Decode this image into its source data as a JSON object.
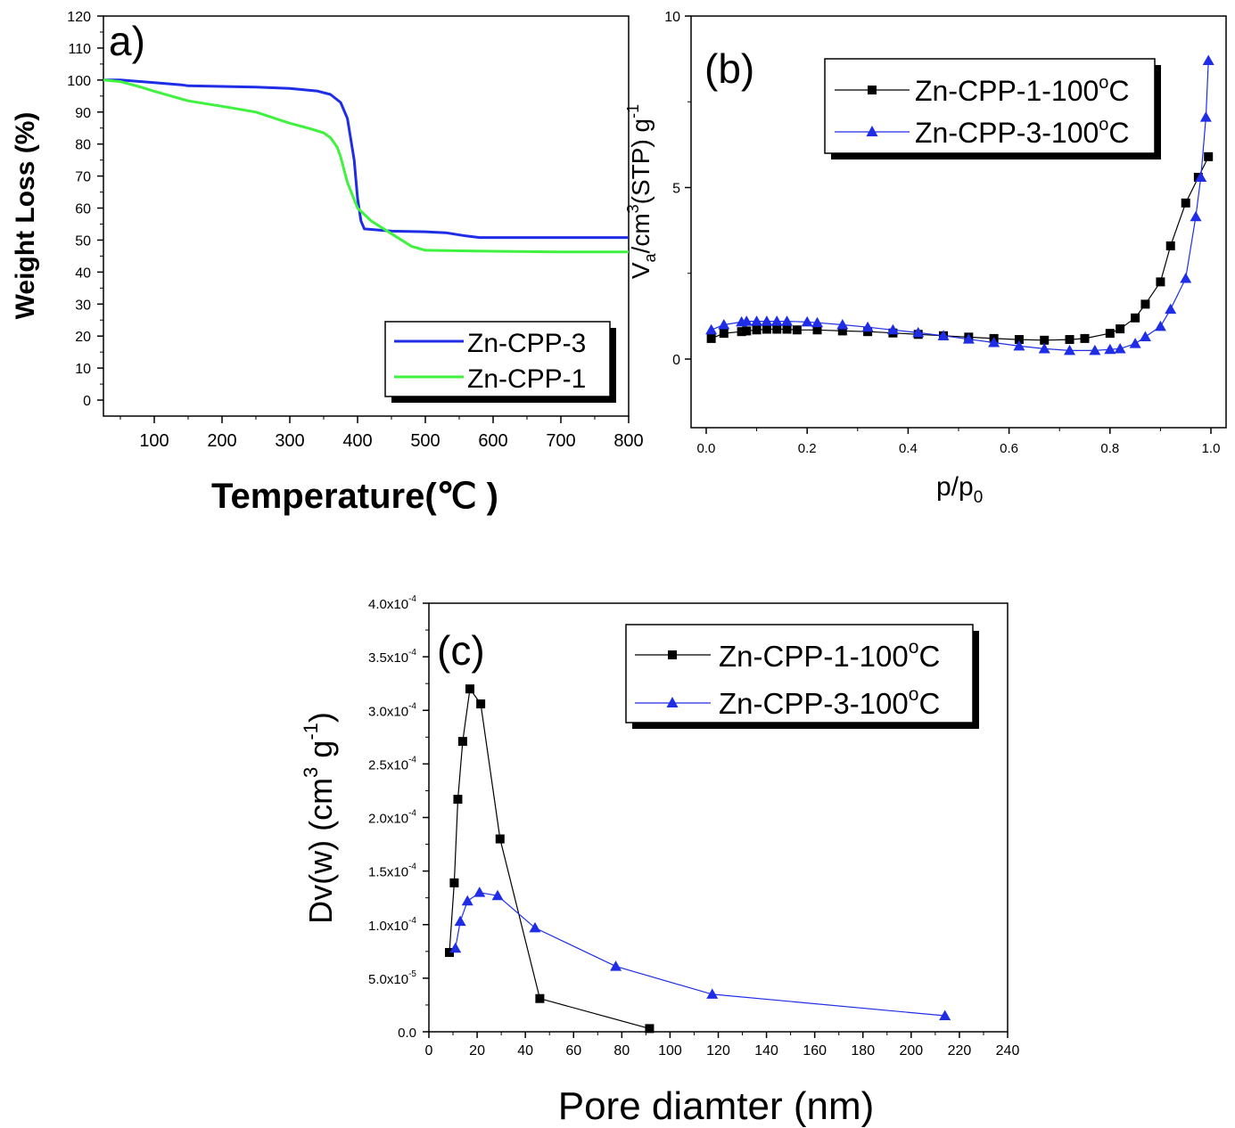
{
  "colors": {
    "blue": "#1f2ee6",
    "green": "#3ff23f",
    "black": "#000000",
    "blue_marker": "#1f2ee6"
  },
  "chart_data": [
    {
      "panel_label": "a)",
      "type": "line",
      "xlabel": "Temperature(℃ )",
      "ylabel": "Weight Loss (%)",
      "xlim": [
        25,
        800
      ],
      "ylim": [
        -5,
        120
      ],
      "xticks": [
        "100",
        "200",
        "300",
        "400",
        "500",
        "600",
        "700",
        "800"
      ],
      "yticks": [
        "0",
        "10",
        "20",
        "30",
        "40",
        "50",
        "60",
        "70",
        "80",
        "90",
        "100",
        "110",
        "120"
      ],
      "legend_position": "bottom-right",
      "series": [
        {
          "name": "Zn-CPP-3",
          "color": "blue",
          "x": [
            25,
            50,
            100,
            140,
            150,
            200,
            250,
            300,
            340,
            360,
            375,
            385,
            395,
            400,
            405,
            410,
            450,
            500,
            530,
            560,
            580,
            650,
            700,
            800
          ],
          "y": [
            100,
            100,
            99.2,
            98.5,
            98.2,
            98,
            97.8,
            97.4,
            96.6,
            95.5,
            93,
            88,
            75,
            63,
            56,
            53.5,
            52.8,
            52.6,
            52.3,
            51.3,
            50.8,
            50.8,
            50.8,
            50.8
          ]
        },
        {
          "name": "Zn-CPP-1",
          "color": "green",
          "x": [
            25,
            50,
            80,
            100,
            150,
            200,
            250,
            300,
            330,
            350,
            360,
            370,
            375,
            385,
            400,
            420,
            450,
            480,
            500,
            600,
            700,
            800
          ],
          "y": [
            100,
            99.5,
            97.8,
            96.5,
            93.5,
            91.8,
            90,
            86.5,
            84.8,
            83.5,
            82,
            79,
            76,
            68,
            60,
            56,
            52,
            48,
            46.8,
            46.5,
            46.3,
            46.3
          ]
        }
      ]
    },
    {
      "panel_label": "(b)",
      "type": "line",
      "xlabel": "p/p",
      "xlabel_sub": "0",
      "ylabel": "V",
      "ylabel_sub": "a",
      "ylabel_mid": "/cm",
      "ylabel_sup": "3",
      "ylabel_tail": "(STP) g",
      "ylabel_sup2": "-1",
      "xlim": [
        -0.03,
        1.03
      ],
      "ylim": [
        -2,
        10
      ],
      "xticks": [
        "0.0",
        "0.2",
        "0.4",
        "0.6",
        "0.8",
        "1.0"
      ],
      "yticks": [
        "0",
        "5",
        "10"
      ],
      "legend_position": "top-right",
      "series": [
        {
          "name": "Zn-CPP-1-100",
          "sup": "o",
          "suffix": "C",
          "marker": "square",
          "color": "black",
          "x": [
            0.01,
            0.035,
            0.07,
            0.08,
            0.1,
            0.12,
            0.14,
            0.16,
            0.18,
            0.22,
            0.27,
            0.32,
            0.37,
            0.42,
            0.47,
            0.52,
            0.57,
            0.62,
            0.67,
            0.72,
            0.75,
            0.8,
            0.82,
            0.85,
            0.87,
            0.9,
            0.92,
            0.95,
            0.975,
            0.995
          ],
          "y": [
            0.6,
            0.75,
            0.8,
            0.82,
            0.85,
            0.87,
            0.87,
            0.87,
            0.85,
            0.85,
            0.82,
            0.8,
            0.76,
            0.72,
            0.68,
            0.64,
            0.6,
            0.57,
            0.55,
            0.57,
            0.6,
            0.75,
            0.88,
            1.2,
            1.6,
            2.25,
            3.3,
            4.55,
            5.3,
            5.9
          ]
        },
        {
          "name": "Zn-CPP-3-100",
          "sup": "o",
          "suffix": "C",
          "marker": "triangle",
          "color": "blue",
          "x": [
            0.01,
            0.035,
            0.07,
            0.08,
            0.1,
            0.12,
            0.14,
            0.16,
            0.2,
            0.22,
            0.27,
            0.32,
            0.37,
            0.42,
            0.47,
            0.52,
            0.57,
            0.62,
            0.67,
            0.72,
            0.77,
            0.8,
            0.82,
            0.85,
            0.87,
            0.9,
            0.92,
            0.95,
            0.97,
            0.98,
            0.99,
            0.995
          ],
          "y": [
            0.85,
            1.0,
            1.08,
            1.1,
            1.1,
            1.1,
            1.1,
            1.1,
            1.08,
            1.06,
            1.0,
            0.93,
            0.85,
            0.77,
            0.68,
            0.58,
            0.48,
            0.38,
            0.3,
            0.25,
            0.25,
            0.28,
            0.3,
            0.45,
            0.65,
            0.95,
            1.45,
            2.35,
            4.15,
            5.3,
            7.05,
            8.7
          ]
        }
      ]
    },
    {
      "panel_label": "(c)",
      "type": "line",
      "xlabel": "Pore diamter (nm)",
      "ylabel": "Dv(w) (cm",
      "ylabel_sup": "3",
      "ylabel_tail": " g",
      "ylabel_sup2": "-1",
      "ylabel_end": ")",
      "xlim": [
        0,
        240
      ],
      "ylim": [
        0,
        0.0004
      ],
      "xticks": [
        "0",
        "20",
        "40",
        "60",
        "80",
        "100",
        "120",
        "140",
        "160",
        "180",
        "200",
        "220",
        "240"
      ],
      "yticks": [
        {
          "m": "0.0",
          "e": ""
        },
        {
          "m": "5.0x10",
          "e": "-5"
        },
        {
          "m": "1.0x10",
          "e": "-4"
        },
        {
          "m": "1.5x10",
          "e": "-4"
        },
        {
          "m": "2.0x10",
          "e": "-4"
        },
        {
          "m": "2.5x10",
          "e": "-4"
        },
        {
          "m": "3.0x10",
          "e": "-4"
        },
        {
          "m": "3.5x10",
          "e": "-4"
        },
        {
          "m": "4.0x10",
          "e": "-4"
        }
      ],
      "legend_position": "top-right",
      "series": [
        {
          "name": "Zn-CPP-1-100",
          "sup": "o",
          "suffix": "C",
          "marker": "square",
          "color": "black",
          "x": [
            8.5,
            10.5,
            12,
            14,
            17,
            21.5,
            29.5,
            46,
            91.5
          ],
          "y": [
            7.4e-05,
            0.000139,
            0.000217,
            0.000271,
            0.00032,
            0.000306,
            0.00018,
            3.1e-05,
            3e-06
          ]
        },
        {
          "name": "Zn-CPP-3-100",
          "sup": "o",
          "suffix": "C",
          "marker": "triangle",
          "color": "blue",
          "x": [
            11,
            13,
            16,
            21,
            28.5,
            44,
            77.5,
            117.5,
            214
          ],
          "y": [
            7.8e-05,
            0.000103,
            0.000122,
            0.00013,
            0.000127,
            9.7e-05,
            6.1e-05,
            3.5e-05,
            1.5e-05
          ]
        }
      ]
    }
  ]
}
